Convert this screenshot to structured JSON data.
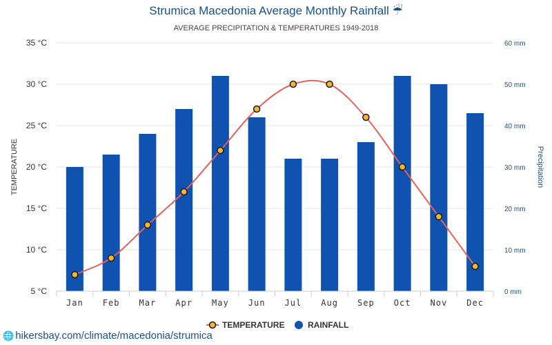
{
  "chart_data": {
    "type": "bar",
    "title": "Strumica Macedonia Average Monthly Rainfall",
    "title_icon": "umbrella-rain-icon",
    "subtitle": "AVERAGE PRECIPITATION & TEMPERATURES 1949-2018",
    "categories": [
      "Jan",
      "Feb",
      "Mar",
      "Apr",
      "May",
      "Jun",
      "Jul",
      "Aug",
      "Sep",
      "Oct",
      "Nov",
      "Dec"
    ],
    "series": [
      {
        "name": "TEMPERATURE",
        "type": "line",
        "axis": "left",
        "unit": "°C",
        "values": [
          7,
          9,
          13,
          17,
          22,
          27,
          30,
          30,
          26,
          20,
          14,
          8
        ],
        "color": "#e8605a",
        "marker_fill": "#f5b731"
      },
      {
        "name": "RAINFALL",
        "type": "bar",
        "axis": "right",
        "unit": "mm",
        "values": [
          30,
          33,
          38,
          44,
          52,
          42,
          32,
          32,
          36,
          52,
          50,
          43
        ],
        "color": "#0f52b0"
      }
    ],
    "ylabel": "TEMPERATURE",
    "ylabel_right": "Precipitation",
    "ylim": [
      5,
      35
    ],
    "ylim_right": [
      0,
      60
    ],
    "yticks": [
      "5 °C",
      "10 °C",
      "15 °C",
      "20 °C",
      "25 °C",
      "30 °C",
      "35 °C"
    ],
    "yticks_right": [
      "0 mm",
      "10 mm",
      "20 mm",
      "30 mm",
      "40 mm",
      "50 mm",
      "60 mm"
    ],
    "grid": true,
    "legend_position": "bottom-center"
  },
  "footer": {
    "url": "hikersbay.com/climate/macedonia/strumica",
    "icon": "globe-icon"
  },
  "colors": {
    "title": "#1b4f8a",
    "grid": "#e6e6e6",
    "right_axis": "#1b4f8a"
  }
}
